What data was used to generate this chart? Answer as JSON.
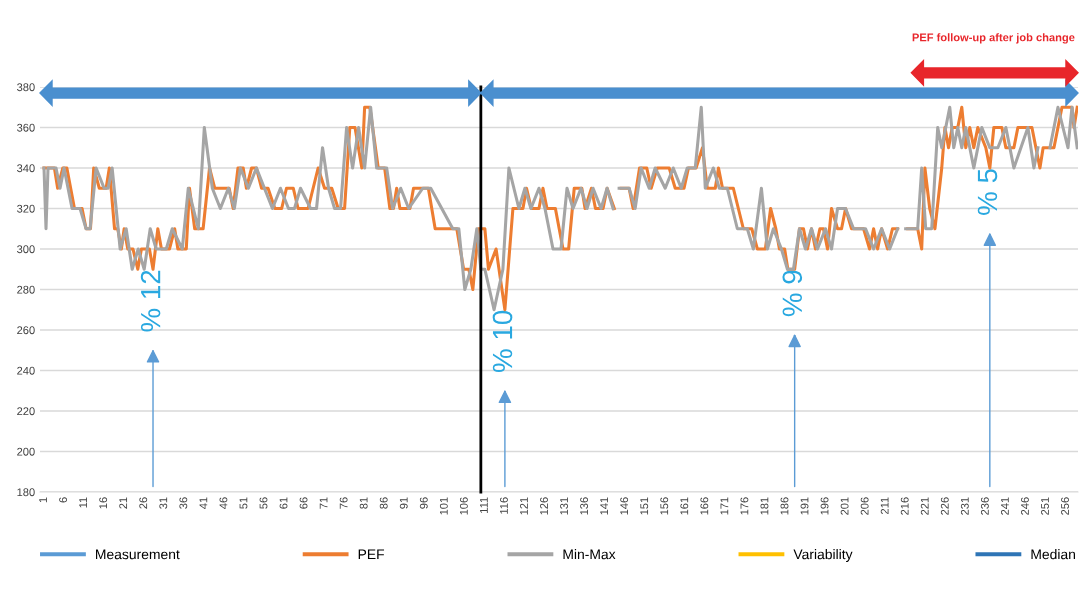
{
  "chart_data": {
    "type": "line",
    "xlim": [
      0,
      259
    ],
    "xticks": [
      1,
      6,
      11,
      16,
      21,
      26,
      31,
      36,
      41,
      46,
      51,
      56,
      61,
      66,
      71,
      76,
      81,
      86,
      91,
      96,
      101,
      106,
      111,
      116,
      121,
      126,
      131,
      136,
      141,
      146,
      151,
      156,
      161,
      166,
      171,
      176,
      181,
      186,
      191,
      196,
      201,
      206,
      211,
      216,
      221,
      226,
      231,
      236,
      241,
      246,
      251,
      256
    ],
    "ylim": [
      180,
      380
    ],
    "yticks": [
      180,
      200,
      220,
      240,
      260,
      280,
      300,
      320,
      340,
      360,
      380
    ],
    "grid": "y",
    "legend": "bottom",
    "line_style": "solid",
    "marker": "none",
    "series": [
      {
        "name": "Measurement",
        "color": "#5b9bd5"
      },
      {
        "name": "PEF",
        "color": "#ed7d31",
        "x": [
          1,
          3.6,
          4.4,
          5.7,
          6.7,
          8.6,
          10.5,
          11.5,
          12.6,
          13.4,
          14.8,
          16.5,
          17.3,
          18.6,
          19.4,
          20.3,
          21,
          21.9,
          23.2,
          24.4,
          25.3,
          27.3,
          28.2,
          29.4,
          30.3,
          32.3,
          33.6,
          34.4,
          36.5,
          37.3,
          38.6,
          40.7,
          42.3,
          43.6,
          45.7,
          47.2,
          48.2,
          49.4,
          50.7,
          51.5,
          52.8,
          54,
          55.3,
          56.9,
          58.6,
          60.3,
          61.5,
          63.2,
          64.4,
          66.9,
          69.4,
          71,
          72.8,
          74.4,
          76,
          77.3,
          78.6,
          80.3,
          81,
          82.3,
          84.4,
          86,
          87.3,
          88.2,
          89,
          89.8,
          92.3,
          93.2,
          96.9,
          98.6,
          104,
          105.7,
          107,
          108,
          109.4,
          111,
          111.9,
          113.8,
          116,
          118,
          120.5,
          121.4,
          122.6,
          124.5,
          125.5,
          126.5,
          128.6,
          130.5,
          131.9,
          133.3,
          135.2,
          136,
          137.6,
          138.6,
          140.5,
          141.5,
          143.3,
          144,
          145,
          147,
          148,
          149.6,
          151.4,
          152.5,
          154,
          157,
          158.5,
          160.7,
          161.8,
          163.7,
          165.3,
          166.5,
          168.5,
          169.3,
          170.3,
          173,
          175.5,
          177.6,
          179,
          181,
          182.3,
          183.6,
          184.5,
          185.8,
          186.6,
          188.3,
          189.5,
          190.5,
          191.5,
          192.5,
          193.5,
          194.6,
          195.5,
          196.5,
          197.5,
          199,
          200,
          201,
          202.5,
          205.5,
          207,
          208,
          209,
          210,
          211.5,
          212.7,
          214,
          215,
          216.5,
          219,
          220,
          220.8,
          222,
          223.3,
          225,
          225.8,
          226.7,
          227.6,
          229,
          230,
          231,
          232,
          233,
          234,
          236,
          237,
          238,
          240,
          241,
          243,
          244,
          247.5,
          248.5,
          249.5,
          250.3,
          253,
          254,
          255,
          257.5,
          258,
          258.8
        ],
        "values": [
          340,
          340,
          330,
          340,
          340,
          320,
          320,
          310,
          310,
          340,
          330,
          330,
          340,
          310,
          310,
          300,
          310,
          300,
          300,
          290,
          300,
          300,
          290,
          310,
          300,
          300,
          310,
          300,
          300,
          330,
          310,
          310,
          340,
          330,
          330,
          330,
          320,
          340,
          340,
          330,
          340,
          340,
          330,
          330,
          320,
          320,
          330,
          330,
          320,
          320,
          340,
          330,
          330,
          320,
          320,
          360,
          360,
          340,
          370,
          370,
          340,
          340,
          320,
          320,
          330,
          320,
          320,
          330,
          330,
          310,
          310,
          290,
          290,
          280,
          310,
          310,
          290,
          300,
          270,
          320,
          320,
          330,
          320,
          320,
          330,
          320,
          320,
          300,
          300,
          330,
          330,
          320,
          330,
          320,
          320,
          330,
          320,
          null,
          330,
          330,
          320,
          340,
          340,
          330,
          340,
          340,
          330,
          330,
          340,
          340,
          350,
          330,
          330,
          340,
          330,
          330,
          310,
          310,
          300,
          300,
          320,
          310,
          300,
          300,
          290,
          290,
          310,
          310,
          300,
          310,
          300,
          310,
          310,
          300,
          320,
          310,
          310,
          320,
          310,
          310,
          300,
          310,
          300,
          310,
          300,
          310,
          310,
          null,
          310,
          310,
          300,
          340,
          320,
          310,
          340,
          360,
          350,
          360,
          360,
          370,
          350,
          360,
          350,
          360,
          350,
          340,
          360,
          360,
          350,
          350,
          360,
          360,
          350,
          340,
          350,
          350,
          360,
          370,
          370,
          360,
          370
        ]
      },
      {
        "name": "Min-Max",
        "color": "#a5a5a5",
        "x": [
          1,
          1.5,
          2,
          4,
          5,
          6,
          8,
          10,
          11.5,
          12.5,
          14,
          16,
          17,
          18,
          20,
          21.5,
          23,
          24.5,
          26,
          27.5,
          29,
          31.5,
          33,
          35.5,
          37,
          39.5,
          41,
          43,
          45,
          47,
          48.5,
          50,
          52,
          54,
          56,
          58,
          60,
          62,
          63.5,
          65,
          67.5,
          69,
          70.5,
          72,
          73.5,
          75,
          76.5,
          78,
          79.5,
          81,
          82.5,
          84,
          86.5,
          88,
          90,
          92,
          95.5,
          97.5,
          103,
          104.5,
          106,
          107.5,
          109,
          110,
          111,
          113.3,
          115.5,
          117,
          119.5,
          121,
          122.5,
          124.5,
          126,
          128,
          130,
          131.5,
          133,
          135,
          136.5,
          138,
          140,
          141.5,
          143,
          144,
          144.5,
          147,
          148.5,
          150,
          152,
          153.5,
          156,
          158,
          160,
          161.5,
          163.5,
          165,
          166,
          168,
          169.5,
          171.5,
          174,
          176.5,
          178,
          180,
          181.5,
          183,
          185,
          186.5,
          188,
          189.5,
          191,
          192.5,
          194,
          196,
          197.5,
          199,
          201,
          203,
          206,
          208,
          210,
          212,
          214,
          215,
          216,
          219,
          220,
          221,
          222.5,
          224,
          225,
          226,
          227,
          228,
          229,
          230,
          231,
          233,
          235,
          237,
          239,
          241,
          243,
          246.5,
          248,
          249,
          250,
          252,
          253,
          254,
          256.5,
          257.5,
          258.8
        ],
        "values": [
          340,
          310,
          340,
          340,
          330,
          340,
          320,
          320,
          310,
          310,
          340,
          330,
          330,
          340,
          300,
          310,
          290,
          300,
          290,
          310,
          300,
          300,
          310,
          300,
          330,
          310,
          360,
          330,
          320,
          330,
          320,
          340,
          330,
          340,
          330,
          320,
          330,
          320,
          320,
          330,
          320,
          320,
          350,
          330,
          320,
          320,
          360,
          340,
          360,
          340,
          370,
          340,
          340,
          320,
          330,
          320,
          330,
          330,
          310,
          310,
          280,
          290,
          310,
          290,
          290,
          270,
          290,
          340,
          320,
          330,
          320,
          330,
          320,
          300,
          300,
          330,
          320,
          330,
          320,
          330,
          320,
          330,
          320,
          null,
          330,
          330,
          320,
          340,
          330,
          340,
          330,
          340,
          330,
          340,
          340,
          370,
          330,
          340,
          330,
          330,
          310,
          310,
          300,
          330,
          300,
          310,
          300,
          290,
          290,
          310,
          300,
          310,
          300,
          310,
          300,
          320,
          320,
          310,
          310,
          300,
          310,
          300,
          310,
          null,
          310,
          310,
          340,
          310,
          310,
          360,
          350,
          360,
          370,
          350,
          360,
          350,
          360,
          340,
          360,
          350,
          350,
          360,
          340,
          360,
          340,
          350,
          null,
          350,
          360,
          370,
          350,
          370,
          350
        ]
      },
      {
        "name": "Variability",
        "color": "#ffc000"
      },
      {
        "name": "Median",
        "color": "#2e75b6"
      }
    ],
    "ref_lines": [
      {
        "axis": "x",
        "value": 110,
        "color": "#000000",
        "line_style": "solid"
      }
    ],
    "annotations": [
      "PEF follow-up after job change",
      {
        "text": "% 12",
        "x": 28.2,
        "y": 290
      },
      {
        "text": "% 10",
        "x": 116,
        "y": 270
      },
      {
        "text": "% 9",
        "x": 188.3,
        "y": 290
      },
      {
        "text": "% 5",
        "x": 237,
        "y": 340
      }
    ]
  }
}
